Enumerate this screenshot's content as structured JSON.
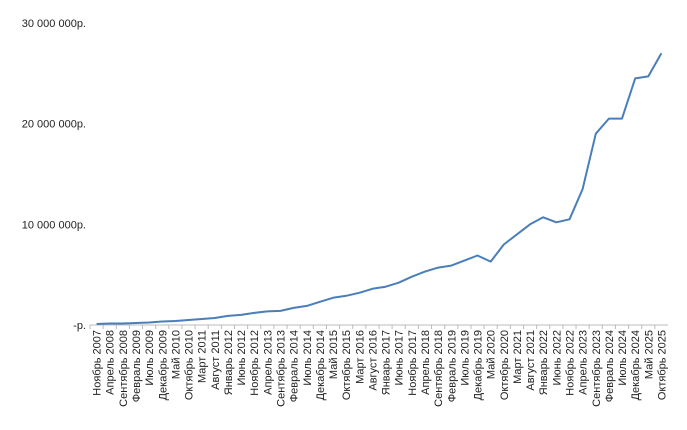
{
  "chart_data": {
    "type": "line",
    "categories": [
      "Ноябрь 2007",
      "Апрель 2008",
      "Сентябрь 2008",
      "Февраль 2009",
      "Июль 2009",
      "Декабрь 2009",
      "Май 2010",
      "Октябрь 2010",
      "Март 2011",
      "Август 2011",
      "Январь 2012",
      "Июнь 2012",
      "Ноябрь 2012",
      "Апрель 2013",
      "Сентябрь 2013",
      "Февраль 2014",
      "Июль 2014",
      "Декабрь 2014",
      "Май 2015",
      "Октябрь 2015",
      "Март 2016",
      "Август 2016",
      "Январь 2017",
      "Июнь 2017",
      "Ноябрь 2017",
      "Апрель 2018",
      "Сентябрь 2018",
      "Февраль 2019",
      "Июль 2019",
      "Декабрь 2019",
      "Май 2020",
      "Октябрь 2020",
      "Март 2021",
      "Август 2021",
      "Январь 2022",
      "Июнь 2022",
      "Ноябрь 2022",
      "Апрель 2023",
      "Сентябрь 2023",
      "Февраль 2024",
      "Июль 2024",
      "Декабрь 2024",
      "Май 2025",
      "Октябрь 2025"
    ],
    "series": [
      {
        "color": "#4a7ebb",
        "values": [
          100000,
          150000,
          150000,
          200000,
          250000,
          350000,
          400000,
          500000,
          600000,
          700000,
          900000,
          1000000,
          1200000,
          1350000,
          1400000,
          1700000,
          1900000,
          2300000,
          2700000,
          2900000,
          3200000,
          3600000,
          3800000,
          4200000,
          4800000,
          5300000,
          5700000,
          5900000,
          6400000,
          6900000,
          6300000,
          8000000,
          9000000,
          10000000,
          10700000,
          10200000,
          10500000,
          13500000,
          19000000,
          20500000,
          20500000,
          24500000,
          24700000,
          27000000
        ]
      }
    ],
    "ylim": [
      0,
      30000000
    ],
    "yticks": [
      {
        "value": 0,
        "label": "-р."
      },
      {
        "value": 10000000,
        "label": "10 000 000р."
      },
      {
        "value": 20000000,
        "label": "20 000 000р."
      },
      {
        "value": 30000000,
        "label": "30 000 000р."
      }
    ],
    "grid": false
  }
}
